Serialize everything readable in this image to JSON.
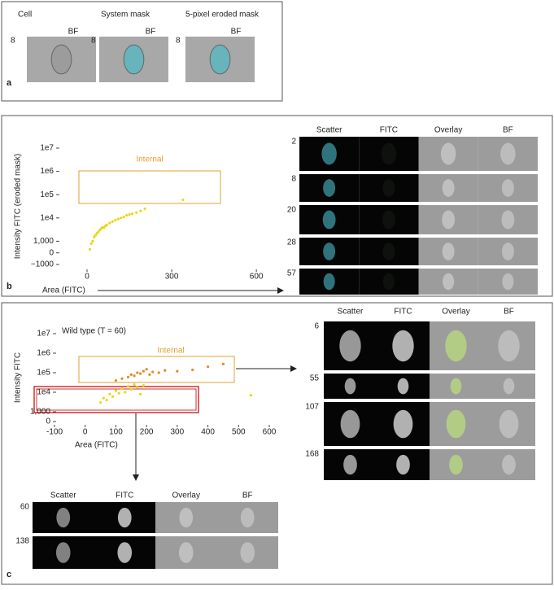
{
  "panel_a": {
    "label": "a",
    "columns": [
      {
        "title": "Cell",
        "channel": "BF",
        "id": "8"
      },
      {
        "title": "System mask",
        "channel": "BF",
        "id": "8"
      },
      {
        "title": "5-pixel eroded mask",
        "channel": "BF",
        "id": "8"
      }
    ]
  },
  "chart_data": [
    {
      "type": "scatter",
      "panel_label": "b",
      "y_label": "Intensity FITC (eroded mask)",
      "x_label": "Area (FITC)",
      "gate_label": "Internal",
      "series": [
        {
          "color": "#e8d81a",
          "x": [
            10,
            15,
            20,
            25,
            30,
            35,
            40,
            45,
            50,
            55,
            60,
            65,
            70,
            80,
            90,
            100,
            110,
            120,
            130,
            140,
            150,
            160,
            175,
            190,
            205,
            340
          ],
          "values": [
            300,
            800,
            1000,
            1500,
            1800,
            2200,
            2500,
            3000,
            3500,
            4000,
            3800,
            4500,
            5000,
            6000,
            7000,
            8000,
            9000,
            10000,
            11000,
            13000,
            14000,
            15000,
            17000,
            20000,
            25000,
            60000
          ]
        }
      ],
      "xlim": [
        -90,
        640
      ],
      "xticks": [
        0,
        300,
        600
      ],
      "ylim": [
        -1000,
        10000000
      ],
      "yscale": "logicle",
      "yticks": [
        {
          "value": -1000,
          "label": "−1000"
        },
        0,
        {
          "value": 1000,
          "label": "1,000"
        },
        {
          "value": 10000,
          "label": "1e4"
        },
        {
          "value": 100000,
          "label": "1e5"
        },
        {
          "value": 1000000,
          "label": "1e6"
        },
        {
          "value": 10000000,
          "label": "1e7"
        }
      ]
    },
    {
      "type": "scatter",
      "panel_label": "c",
      "subtitle": "Wild type (T = 60)",
      "y_label": "Intensity FITC",
      "x_label": "Area (FITC)",
      "gate_label": "Internal",
      "series": [
        {
          "color": "#e8d81a",
          "x": [
            50,
            60,
            70,
            80,
            90,
            100,
            110,
            120,
            130,
            140,
            150,
            160,
            170,
            180,
            190,
            540
          ],
          "values": [
            3000,
            5000,
            4000,
            8000,
            6000,
            12000,
            9000,
            15000,
            10000,
            20000,
            14000,
            25000,
            18000,
            8000,
            22000,
            7000
          ]
        },
        {
          "color": "#e08a2a",
          "x": [
            100,
            120,
            140,
            150,
            160,
            170,
            180,
            190,
            200,
            210,
            220,
            240,
            260,
            300,
            350,
            400,
            450
          ],
          "values": [
            40000,
            50000,
            60000,
            80000,
            70000,
            100000,
            90000,
            120000,
            150000,
            80000,
            110000,
            100000,
            130000,
            120000,
            140000,
            200000,
            280000
          ]
        }
      ],
      "xlim": [
        -100,
        600
      ],
      "xticks": [
        -100,
        0,
        100,
        200,
        300,
        400,
        500,
        600
      ],
      "ylim": [
        0,
        10000000
      ],
      "yscale": "logicle",
      "yticks": [
        0,
        {
          "value": 1000,
          "label": "1,000"
        },
        {
          "value": 10000,
          "label": "1e4"
        },
        {
          "value": 100000,
          "label": "1e5"
        },
        {
          "value": 1000000,
          "label": "1e6"
        },
        {
          "value": 10000000,
          "label": "1e7"
        }
      ]
    }
  ],
  "gallery_b": {
    "headers": [
      "Scatter",
      "FITC",
      "Overlay",
      "BF"
    ],
    "rows": [
      "2",
      "8",
      "20",
      "28",
      "57"
    ]
  },
  "gallery_c_internal": {
    "headers": [
      "Scatter",
      "FITC",
      "Overlay",
      "BF"
    ],
    "rows": [
      "6",
      "55",
      "107",
      "168"
    ]
  },
  "gallery_c_low": {
    "headers": [
      "Scatter",
      "FITC",
      "Overlay",
      "BF"
    ],
    "rows": [
      "60",
      "138"
    ]
  }
}
